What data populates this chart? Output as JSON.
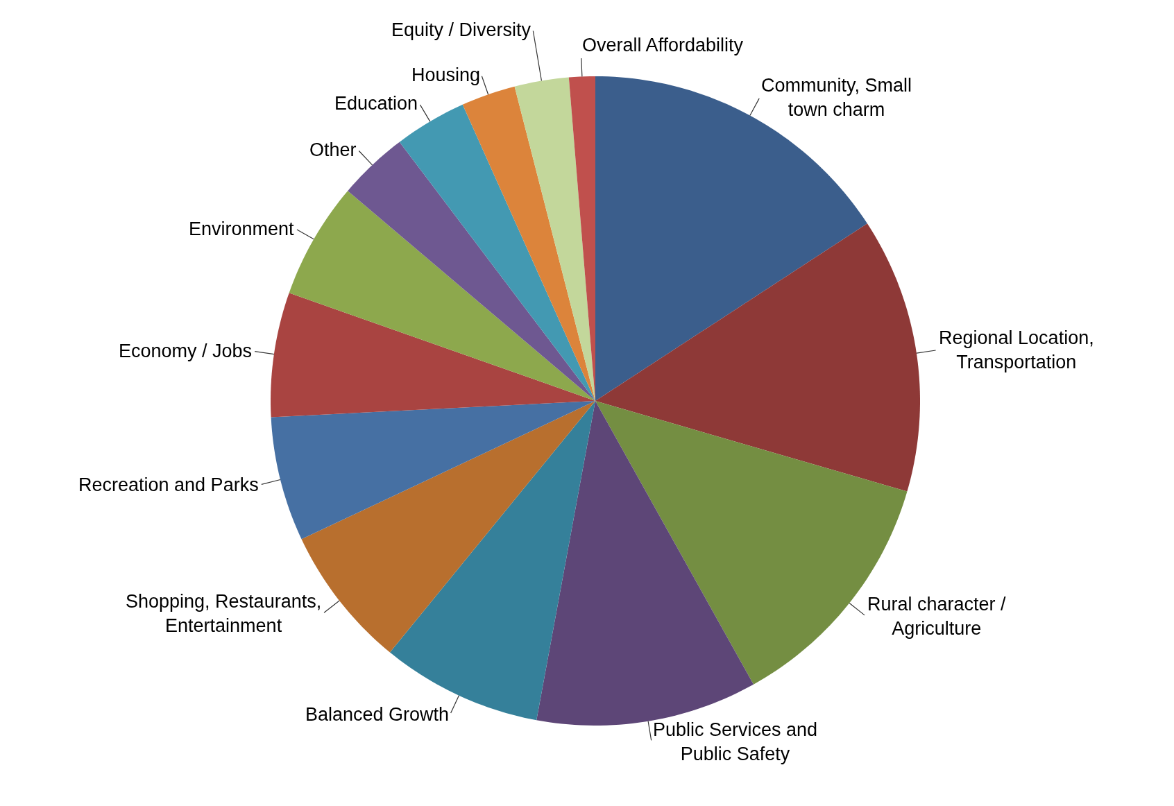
{
  "chart_data": {
    "type": "pie",
    "categories": [
      "Community, Small\ntown charm",
      "Regional Location,\nTransportation",
      "Rural character /\nAgriculture",
      "Public Services and\nPublic Safety",
      "Balanced Growth",
      "Shopping, Restaurants,\nEntertainment",
      "Recreation and Parks",
      "Economy / Jobs",
      "Environment",
      "Other",
      "Education",
      "Housing",
      "Equity / Diversity",
      "Overall Affordability"
    ],
    "values": [
      15.8,
      13.7,
      12.4,
      11.0,
      8.0,
      7.1,
      6.2,
      6.2,
      5.8,
      3.5,
      3.6,
      2.7,
      2.7,
      1.3
    ],
    "colors": [
      "#3b5e8c",
      "#8e3937",
      "#748e42",
      "#5d4677",
      "#35809a",
      "#b86f2e",
      "#4670a3",
      "#a94441",
      "#8da84d",
      "#6e5891",
      "#4399b2",
      "#dc843b",
      "#c3d79b",
      "#c0504d"
    ]
  }
}
